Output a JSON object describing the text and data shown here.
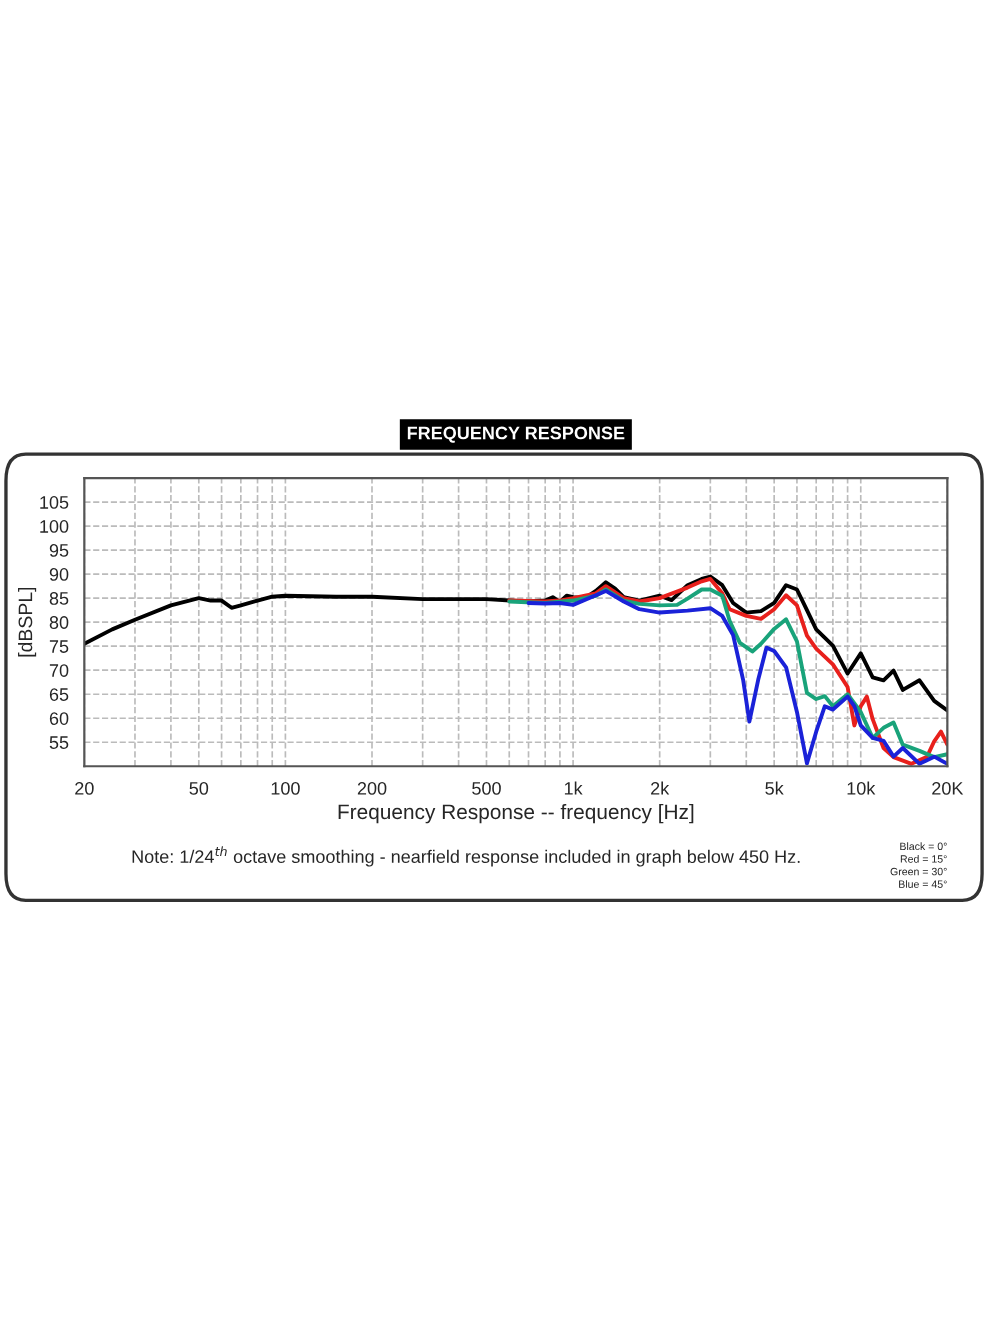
{
  "chart_data": {
    "type": "line",
    "title": "FREQUENCY RESPONSE",
    "xlabel": "Frequency Response -- frequency [Hz]",
    "ylabel": "[dBSPL]",
    "log": "x",
    "grid": true,
    "line_style": "solid",
    "marker": "none",
    "xlim": [
      20,
      20000
    ],
    "ylim": [
      50,
      110
    ],
    "xticks": [
      20,
      {
        "value": 30,
        "label": null
      },
      {
        "value": 40,
        "label": null
      },
      50,
      {
        "value": 60,
        "label": null
      },
      {
        "value": 70,
        "label": null
      },
      {
        "value": 80,
        "label": null
      },
      {
        "value": 90,
        "label": null
      },
      100,
      200,
      {
        "value": 300,
        "label": null
      },
      {
        "value": 400,
        "label": null
      },
      500,
      {
        "value": 600,
        "label": null
      },
      {
        "value": 700,
        "label": null
      },
      {
        "value": 800,
        "label": null
      },
      {
        "value": 900,
        "label": null
      },
      {
        "value": 1000,
        "label": "1k"
      },
      {
        "value": 2000,
        "label": "2k"
      },
      {
        "value": 3000,
        "label": null
      },
      {
        "value": 4000,
        "label": null
      },
      {
        "value": 5000,
        "label": "5k"
      },
      {
        "value": 6000,
        "label": null
      },
      {
        "value": 7000,
        "label": null
      },
      {
        "value": 8000,
        "label": null
      },
      {
        "value": 9000,
        "label": null
      },
      {
        "value": 10000,
        "label": "10k"
      },
      {
        "value": 20000,
        "label": "20K"
      }
    ],
    "yticks": [
      55,
      60,
      65,
      70,
      75,
      80,
      85,
      90,
      95,
      100,
      105
    ],
    "series": [
      {
        "color": "#000000",
        "x": [
          20,
          25,
          30,
          40,
          50,
          55,
          60,
          65,
          70,
          80,
          90,
          100,
          150,
          200,
          300,
          500,
          700,
          800,
          850,
          900,
          950,
          1000,
          1100,
          1200,
          1300,
          1400,
          1500,
          1700,
          2000,
          2200,
          2500,
          2800,
          3000,
          3300,
          3600,
          4000,
          4500,
          5000,
          5500,
          6000,
          6500,
          7000,
          8000,
          9000,
          10000,
          11000,
          12000,
          13000,
          14000,
          16000,
          18000,
          20000
        ],
        "values": [
          75.5,
          78.5,
          80.5,
          83.5,
          85,
          84.5,
          84.5,
          83,
          83.5,
          84.5,
          85.3,
          85.5,
          85.3,
          85.3,
          84.8,
          84.8,
          84.3,
          84.5,
          85.2,
          84.2,
          85.5,
          85.2,
          85,
          86.5,
          88.3,
          87,
          85.2,
          84.5,
          85.5,
          84.6,
          87.7,
          89,
          89.5,
          87.7,
          84,
          82,
          82.3,
          84,
          87.7,
          86.8,
          82.5,
          78.5,
          75.1,
          69.3,
          73.5,
          68.5,
          67.9,
          69.9,
          65.9,
          67.9,
          63.6,
          61.6
        ]
      },
      {
        "color": "#e8201c",
        "x": [
          600,
          800,
          900,
          1000,
          1200,
          1300,
          1500,
          1700,
          2000,
          2500,
          2800,
          3000,
          3300,
          3500,
          4000,
          4500,
          5000,
          5500,
          6000,
          6500,
          7000,
          8000,
          9000,
          9500,
          10000,
          10500,
          11000,
          12000,
          13000,
          15000,
          17000,
          18000,
          19000,
          20000
        ],
        "values": [
          84.5,
          84.3,
          84.5,
          85,
          86,
          87.5,
          85,
          84.3,
          85,
          87.2,
          88.5,
          89,
          86,
          82.7,
          81.3,
          80.7,
          82.7,
          85.6,
          83.5,
          77.2,
          74.5,
          71.2,
          66.5,
          58.5,
          62.5,
          64.5,
          59.8,
          53.8,
          51.9,
          50.5,
          52,
          55.2,
          57.2,
          54.5
        ]
      },
      {
        "color": "#19a37a",
        "x": [
          600,
          800,
          1000,
          1200,
          1300,
          1500,
          1700,
          2000,
          2300,
          2500,
          2800,
          3000,
          3300,
          3500,
          3800,
          4200,
          4500,
          5000,
          5500,
          6000,
          6500,
          7000,
          7500,
          8000,
          9000,
          10000,
          11000,
          12000,
          13000,
          14000,
          16000,
          18000,
          20000
        ],
        "values": [
          84.3,
          84,
          84.5,
          85.5,
          86.8,
          84.5,
          83.8,
          83.5,
          83.6,
          84.9,
          86.8,
          86.8,
          85.5,
          80.3,
          75.7,
          73.9,
          75.5,
          78.6,
          80.6,
          76,
          65.3,
          64,
          64.6,
          62.5,
          65,
          61.3,
          55.9,
          58,
          59.1,
          54.5,
          53.2,
          51.9,
          52.5
        ]
      },
      {
        "color": "#1a22d8",
        "x": [
          700,
          800,
          900,
          1000,
          1200,
          1300,
          1500,
          1700,
          2000,
          2500,
          3000,
          3300,
          3600,
          3900,
          4100,
          4400,
          4700,
          5000,
          5500,
          6000,
          6500,
          7000,
          7500,
          8000,
          9000,
          9500,
          10000,
          11000,
          12000,
          13000,
          14000,
          16000,
          18000,
          20000
        ],
        "values": [
          84,
          83.9,
          84,
          83.6,
          85.6,
          86.5,
          84.3,
          82.7,
          82,
          82.4,
          82.9,
          81.3,
          77.3,
          68,
          59.3,
          68,
          74.7,
          74,
          70.6,
          61.3,
          50.6,
          57.2,
          62.5,
          61.8,
          64.5,
          62.5,
          58.5,
          55.9,
          55.3,
          52,
          53.8,
          50.5,
          52,
          50.5
        ]
      }
    ],
    "annotations": [
      "Note: 1/24$^{th}$ octave smoothing - nearfield response included in graph below 450 Hz.",
      "Black = 0°",
      "Red = 15°",
      "Green = 30°",
      "Blue = 45°"
    ]
  }
}
